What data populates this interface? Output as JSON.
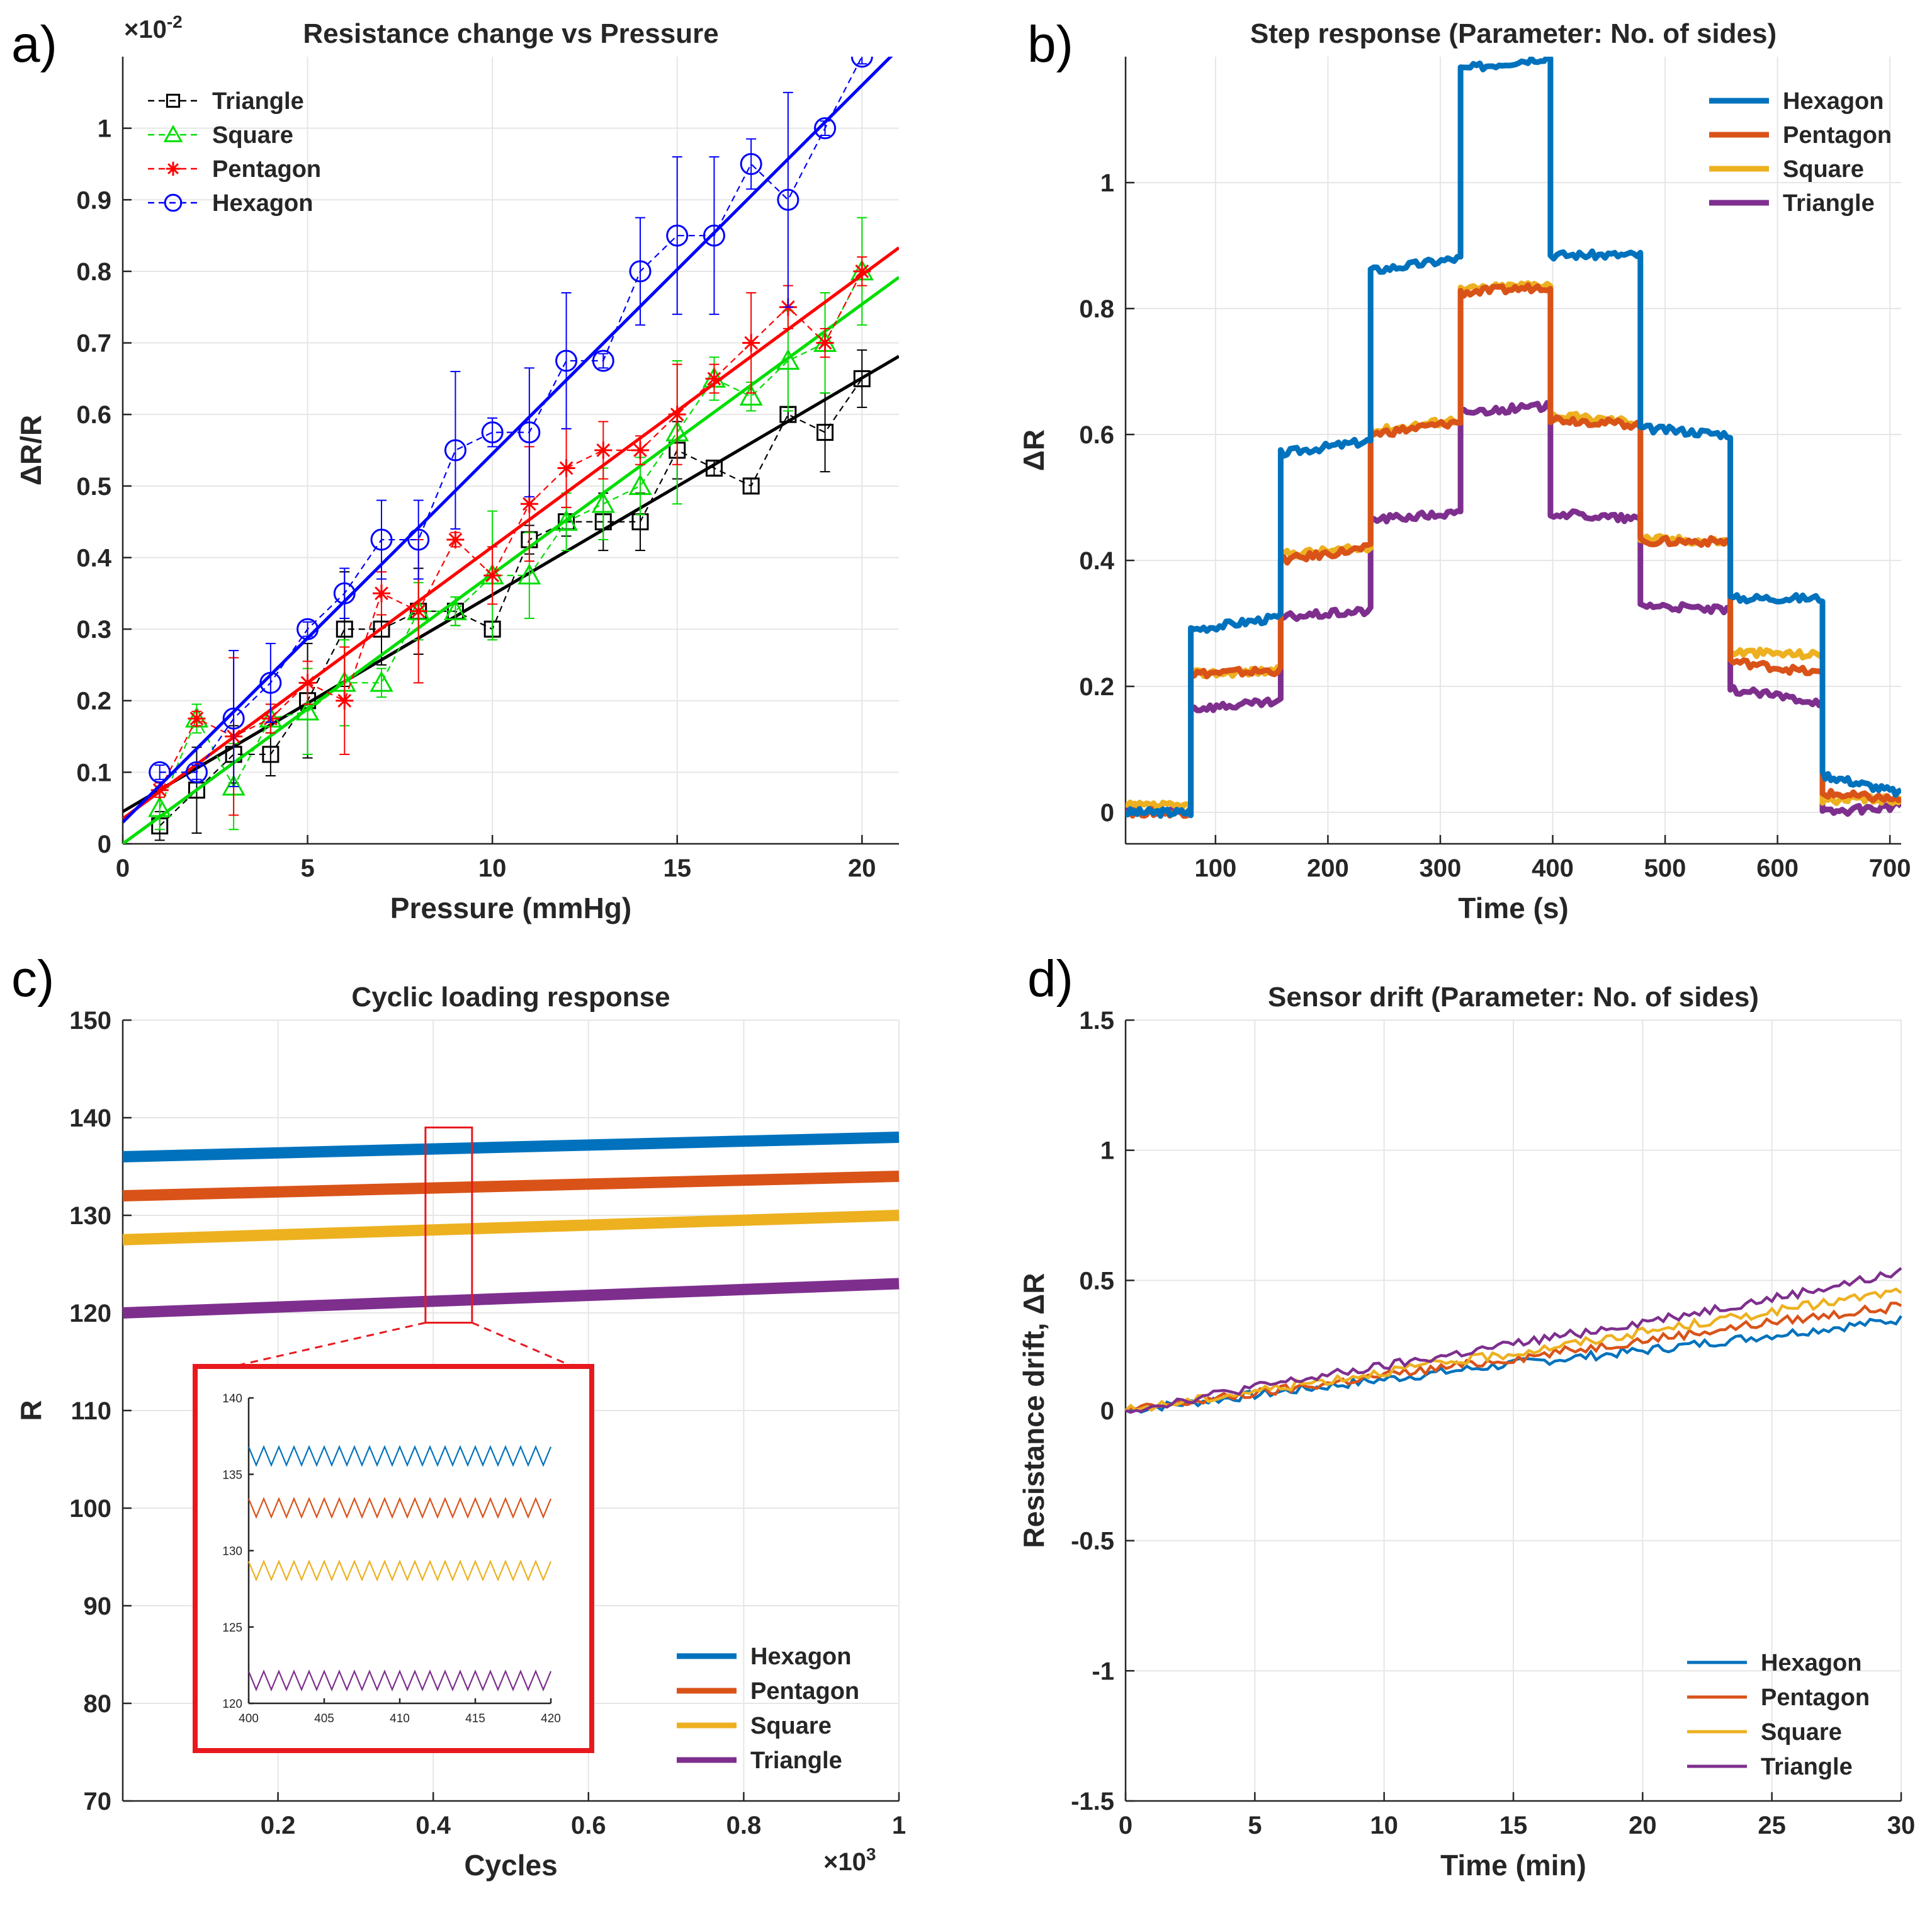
{
  "figure_labels": {
    "a": "a)",
    "b": "b)",
    "c": "c)",
    "d": "d)"
  },
  "colors": {
    "hexagon": "#0072BD",
    "pentagon": "#D95319",
    "square": "#EDB120",
    "triangle": "#7E2F8E",
    "a_triangle": "#000000",
    "a_square": "#00dd00",
    "a_pentagon": "#ff0000",
    "a_hexagon": "#0000ff",
    "inset_box": "#e8191e"
  },
  "chart_data": [
    {
      "id": "a",
      "type": "scatter",
      "title": "Resistance change vs Pressure",
      "xlabel": "Pressure (mmHg)",
      "ylabel": "ΔR/R",
      "y_exponent_label": "×10",
      "y_exponent_power": "-2",
      "xlim": [
        0,
        21
      ],
      "ylim": [
        0,
        1.1
      ],
      "xticks": [
        0,
        5,
        10,
        15,
        20
      ],
      "xtick_labels": [
        "0",
        "5",
        "10",
        "15",
        "20"
      ],
      "yticks": [
        0,
        0.1,
        0.2,
        0.3,
        0.4,
        0.5,
        0.6,
        0.7,
        0.8,
        0.9,
        1
      ],
      "ytick_labels": [
        "0",
        "0.1",
        "0.2",
        "0.3",
        "0.4",
        "0.5",
        "0.6",
        "0.7",
        "0.8",
        "0.9",
        "1"
      ],
      "grid": true,
      "legend_position": "top-left",
      "series": [
        {
          "name": "Triangle",
          "color_key": "a_triangle",
          "marker": "square",
          "x": [
            1,
            2,
            3,
            4,
            5,
            6,
            7,
            8,
            9,
            10,
            11,
            12,
            13,
            14,
            15,
            16,
            17,
            18,
            19,
            20
          ],
          "y": [
            0.025,
            0.075,
            0.125,
            0.125,
            0.2,
            0.3,
            0.3,
            0.325,
            0.325,
            0.3,
            0.425,
            0.45,
            0.45,
            0.45,
            0.55,
            0.525,
            0.5,
            0.6,
            0.575,
            0.65
          ],
          "err": [
            0.02,
            0.06,
            0.04,
            0.03,
            0.08,
            0.08,
            0.05,
            0.06,
            0.02,
            0.01,
            0.02,
            0.02,
            0.04,
            0.04,
            0.04,
            0.01,
            0.01,
            0.01,
            0.055,
            0.04
          ],
          "fit": {
            "intercept": 0.045,
            "slope": 0.0303
          }
        },
        {
          "name": "Square",
          "color_key": "a_square",
          "marker": "triangle",
          "x": [
            1,
            2,
            3,
            4,
            5,
            6,
            7,
            8,
            9,
            10,
            11,
            12,
            13,
            14,
            15,
            16,
            17,
            18,
            19,
            20
          ],
          "y": [
            0.05,
            0.175,
            0.08,
            0.175,
            0.185,
            0.225,
            0.225,
            0.325,
            0.325,
            0.375,
            0.375,
            0.45,
            0.475,
            0.5,
            0.575,
            0.65,
            0.625,
            0.675,
            0.7,
            0.8
          ],
          "err": [
            0.03,
            0.02,
            0.06,
            0.02,
            0.06,
            0.06,
            0.02,
            0.04,
            0.02,
            0.09,
            0.06,
            0.04,
            0.05,
            0.04,
            0.1,
            0.03,
            0.02,
            0.07,
            0.07,
            0.075
          ],
          "fit": {
            "intercept": 0.0,
            "slope": 0.0377
          }
        },
        {
          "name": "Pentagon",
          "color_key": "a_pentagon",
          "marker": "asterisk",
          "x": [
            1,
            2,
            3,
            4,
            5,
            6,
            7,
            8,
            9,
            10,
            11,
            12,
            13,
            14,
            15,
            16,
            17,
            18,
            19,
            20
          ],
          "y": [
            0.075,
            0.175,
            0.15,
            0.175,
            0.225,
            0.2,
            0.35,
            0.325,
            0.425,
            0.375,
            0.475,
            0.525,
            0.55,
            0.55,
            0.6,
            0.65,
            0.7,
            0.75,
            0.7,
            0.8
          ],
          "err": [
            0.01,
            0.01,
            0.11,
            0.02,
            0.03,
            0.075,
            0.03,
            0.1,
            0.01,
            0.04,
            0.08,
            0.055,
            0.04,
            0.02,
            0.07,
            0.02,
            0.07,
            0.03,
            0.02,
            0.02
          ],
          "fit": {
            "intercept": 0.035,
            "slope": 0.038
          }
        },
        {
          "name": "Hexagon",
          "color_key": "a_hexagon",
          "marker": "circle",
          "x": [
            1,
            2,
            3,
            4,
            5,
            6,
            7,
            8,
            9,
            10,
            11,
            12,
            13,
            14,
            15,
            16,
            17,
            18,
            19,
            20
          ],
          "y": [
            0.1,
            0.1,
            0.175,
            0.225,
            0.3,
            0.35,
            0.425,
            0.425,
            0.55,
            0.575,
            0.575,
            0.675,
            0.675,
            0.8,
            0.85,
            0.85,
            0.95,
            0.9,
            1.0,
            1.1
          ],
          "err": [
            0.01,
            0.01,
            0.095,
            0.055,
            0.01,
            0.035,
            0.055,
            0.055,
            0.11,
            0.02,
            0.09,
            0.095,
            0.01,
            0.075,
            0.11,
            0.11,
            0.035,
            0.15,
            0.01,
            0.01
          ],
          "fit": {
            "intercept": 0.03,
            "slope": 0.0515
          }
        }
      ]
    },
    {
      "id": "b",
      "type": "line",
      "title": "Step response (Parameter: No. of sides)",
      "xlabel": "Time (s)",
      "ylabel": "ΔR",
      "xlim": [
        20,
        710
      ],
      "ylim": [
        -0.05,
        1.2
      ],
      "xticks": [
        100,
        200,
        300,
        400,
        500,
        600,
        700
      ],
      "xtick_labels": [
        "100",
        "200",
        "300",
        "400",
        "500",
        "600",
        "700"
      ],
      "yticks": [
        0,
        0.2,
        0.4,
        0.6,
        0.8,
        1
      ],
      "ytick_labels": [
        "0",
        "0.2",
        "0.4",
        "0.6",
        "0.8",
        "1"
      ],
      "grid": true,
      "legend_position": "top-right",
      "step_times": [
        20,
        78,
        158,
        238,
        318,
        398,
        478,
        558,
        640,
        710
      ],
      "series": [
        {
          "name": "Hexagon",
          "color_key": "hexagon",
          "levels": [
            0.0,
            0.29,
            0.57,
            0.86,
            1.18,
            0.885,
            0.61,
            0.34,
            0.06
          ],
          "drift": [
            0,
            0.02,
            0.02,
            0.02,
            0.02,
            0,
            -0.01,
            0,
            -0.03
          ]
        },
        {
          "name": "Pentagon",
          "color_key": "pentagon",
          "levels": [
            0.0,
            0.22,
            0.4,
            0.6,
            0.825,
            0.625,
            0.43,
            0.24,
            0.03
          ],
          "drift": [
            0,
            0.005,
            0.02,
            0.02,
            0.01,
            -0.01,
            0,
            -0.02,
            -0.01
          ]
        },
        {
          "name": "Square",
          "color_key": "square",
          "levels": [
            0.01,
            0.22,
            0.41,
            0.605,
            0.83,
            0.63,
            0.435,
            0.255,
            0.02
          ],
          "drift": [
            0,
            0.005,
            0.01,
            0.02,
            0.01,
            -0.01,
            -0.005,
            -0.005,
            0
          ]
        },
        {
          "name": "Triangle",
          "color_key": "triangle",
          "levels": [
            0.0,
            0.165,
            0.31,
            0.465,
            0.635,
            0.475,
            0.33,
            0.195,
            0.0
          ],
          "drift": [
            0,
            0.01,
            0.01,
            0.01,
            0.01,
            -0.01,
            -0.01,
            -0.02,
            0.01
          ]
        }
      ]
    },
    {
      "id": "c",
      "type": "line",
      "title": "Cyclic loading response",
      "xlabel": "Cycles",
      "ylabel": "R",
      "x_exponent_label": "×10",
      "x_exponent_power": "3",
      "xlim": [
        0,
        1
      ],
      "ylim": [
        70,
        150
      ],
      "xticks": [
        0.2,
        0.4,
        0.6,
        0.8,
        1
      ],
      "xtick_labels": [
        "0.2",
        "0.4",
        "0.6",
        "0.8",
        "1"
      ],
      "yticks": [
        70,
        80,
        90,
        100,
        110,
        120,
        130,
        140,
        150
      ],
      "ytick_labels": [
        "70",
        "80",
        "90",
        "100",
        "110",
        "120",
        "130",
        "140",
        "150"
      ],
      "grid": true,
      "legend_position": "bottom-right",
      "series": [
        {
          "name": "Hexagon",
          "color_key": "hexagon",
          "x": [
            0,
            1
          ],
          "y": [
            136,
            138
          ]
        },
        {
          "name": "Pentagon",
          "color_key": "pentagon",
          "x": [
            0,
            1
          ],
          "y": [
            132,
            134
          ]
        },
        {
          "name": "Square",
          "color_key": "square",
          "x": [
            0,
            1
          ],
          "y": [
            127.5,
            130
          ]
        },
        {
          "name": "Triangle",
          "color_key": "triangle",
          "x": [
            0,
            1
          ],
          "y": [
            120,
            123
          ]
        }
      ],
      "zoom_region": {
        "x": [
          0.39,
          0.45
        ],
        "y": [
          119,
          139
        ]
      },
      "inset": {
        "xlim": [
          400,
          420
        ],
        "ylim": [
          120,
          140
        ],
        "xticks": [
          400,
          405,
          410,
          415,
          420
        ],
        "xtick_labels": [
          "400",
          "405",
          "410",
          "415",
          "420"
        ],
        "yticks": [
          120,
          125,
          130,
          135,
          140
        ],
        "ytick_labels": [
          "120",
          "125",
          "130",
          "135",
          "140"
        ],
        "cycles": 20,
        "amplitude": 0.6,
        "means": [
          136.2,
          132.8,
          128.7,
          121.5
        ]
      }
    },
    {
      "id": "d",
      "type": "line",
      "title": "Sensor drift (Parameter: No. of sides)",
      "xlabel": "Time (min)",
      "ylabel": "Resistance drift, ΔR",
      "xlim": [
        0,
        30
      ],
      "ylim": [
        -1.5,
        1.5
      ],
      "xticks": [
        0,
        5,
        10,
        15,
        20,
        25,
        30
      ],
      "xtick_labels": [
        "0",
        "5",
        "10",
        "15",
        "20",
        "25",
        "30"
      ],
      "yticks": [
        -1.5,
        -1,
        -0.5,
        0,
        0.5,
        1,
        1.5
      ],
      "ytick_labels": [
        "-1.5",
        "-1",
        "-0.5",
        "0",
        "0.5",
        "1",
        "1.5"
      ],
      "grid": true,
      "legend_position": "bottom-right",
      "series": [
        {
          "name": "Hexagon",
          "color_key": "hexagon",
          "x": [
            0,
            5,
            10,
            15,
            20,
            25,
            30
          ],
          "y": [
            0,
            0.06,
            0.12,
            0.18,
            0.23,
            0.29,
            0.35
          ]
        },
        {
          "name": "Pentagon",
          "color_key": "pentagon",
          "x": [
            0,
            5,
            10,
            15,
            20,
            25,
            30
          ],
          "y": [
            0,
            0.065,
            0.135,
            0.2,
            0.27,
            0.34,
            0.4
          ]
        },
        {
          "name": "Square",
          "color_key": "square",
          "x": [
            0,
            5,
            10,
            15,
            20,
            25,
            30
          ],
          "y": [
            0,
            0.075,
            0.15,
            0.22,
            0.3,
            0.38,
            0.46
          ]
        },
        {
          "name": "Triangle",
          "color_key": "triangle",
          "x": [
            0,
            5,
            10,
            15,
            20,
            25,
            30
          ],
          "y": [
            0,
            0.09,
            0.17,
            0.255,
            0.34,
            0.43,
            0.53
          ]
        }
      ]
    }
  ]
}
